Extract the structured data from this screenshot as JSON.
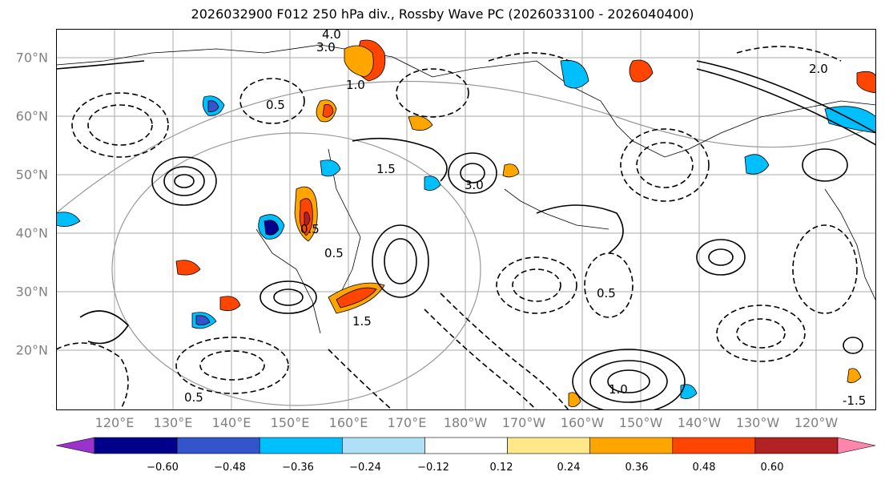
{
  "title": "2026032900 F012 250 hPa div., Rossby Wave PC (2026033100 - 2026040400)",
  "map": {
    "lat_labels": [
      "70°N",
      "60°N",
      "50°N",
      "40°N",
      "30°N",
      "20°N"
    ],
    "lon_labels": [
      "120°E",
      "130°E",
      "140°E",
      "150°E",
      "160°E",
      "170°E",
      "180°W",
      "170°W",
      "160°W",
      "150°W",
      "140°W",
      "130°W",
      "120°W"
    ],
    "contour_labels": [
      "4.0",
      "3.0",
      "1.0",
      "0.5",
      "2.0",
      "1.5",
      "3.0",
      "0.5",
      "0.5",
      "1.5",
      "1.0",
      "0.5",
      "0.5",
      "-1.5"
    ],
    "colors": {
      "neg_060": "#9933cc",
      "neg_048": "#00008b",
      "neg_036": "#3355cc",
      "neg_024": "#00bfff",
      "neg_012": "#b0e0f8",
      "zero": "#ffffff",
      "pos_012": "#ffe88a",
      "pos_024": "#ffa500",
      "pos_036": "#ff4500",
      "pos_048": "#b22222",
      "pos_060": "#ff85aa"
    }
  },
  "colorbar": {
    "tick_labels": [
      "−0.60",
      "−0.48",
      "−0.36",
      "−0.24",
      "−0.12",
      "0.12",
      "0.24",
      "0.36",
      "0.48",
      "0.60"
    ],
    "colors": [
      "#9933cc",
      "#00008b",
      "#3355cc",
      "#00bfff",
      "#b0e0f8",
      "#ffffff",
      "#ffe88a",
      "#ffa500",
      "#ff4500",
      "#b22222",
      "#ff85aa"
    ]
  }
}
